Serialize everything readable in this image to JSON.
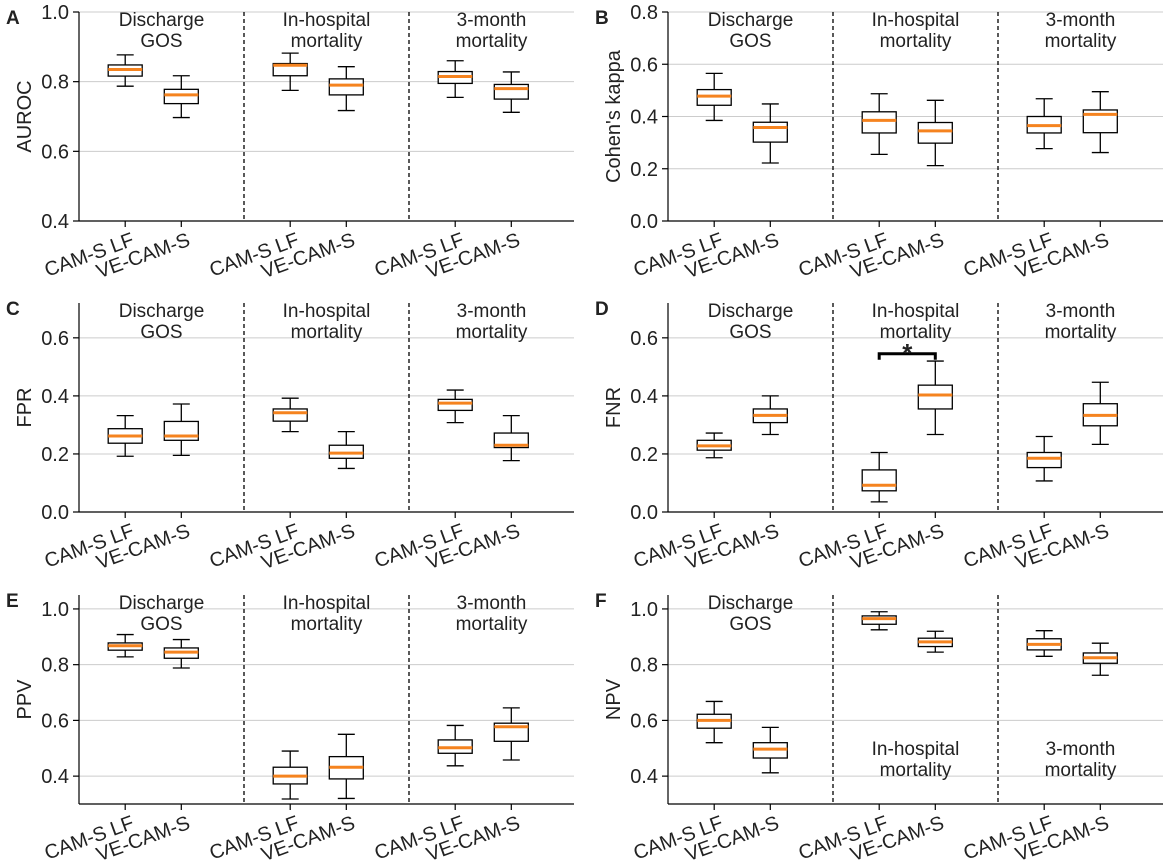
{
  "figure": {
    "colors": {
      "median": "#f5831f",
      "box": "#000000",
      "grid": "#cccccc",
      "text": "#222222"
    },
    "group_labels": [
      "CAM-S LF",
      "VE-CAM-S"
    ]
  },
  "chart_data": [
    {
      "panel_letter": "A",
      "type": "boxplot",
      "ylabel": "AUROC",
      "ylim": [
        0.4,
        1.0
      ],
      "yticks": [
        "0.4",
        "0.6",
        "0.8",
        "1.0"
      ],
      "grid": "horizontal",
      "sections": [
        {
          "title": [
            "Discharge",
            "GOS"
          ],
          "title_placement": "top",
          "boxes": [
            {
              "label": "CAM-S LF",
              "min": 0.787,
              "q1": 0.816,
              "median": 0.835,
              "q3": 0.848,
              "max": 0.877
            },
            {
              "label": "VE-CAM-S",
              "min": 0.697,
              "q1": 0.737,
              "median": 0.762,
              "q3": 0.778,
              "max": 0.817
            }
          ]
        },
        {
          "title": [
            "In-hospital",
            "mortality"
          ],
          "title_placement": "top",
          "boxes": [
            {
              "label": "CAM-S LF",
              "min": 0.775,
              "q1": 0.817,
              "median": 0.847,
              "q3": 0.852,
              "max": 0.882
            },
            {
              "label": "VE-CAM-S",
              "min": 0.717,
              "q1": 0.762,
              "median": 0.79,
              "q3": 0.808,
              "max": 0.843
            }
          ]
        },
        {
          "title": [
            "3-month",
            "mortality"
          ],
          "title_placement": "top",
          "boxes": [
            {
              "label": "CAM-S LF",
              "min": 0.755,
              "q1": 0.795,
              "median": 0.815,
              "q3": 0.829,
              "max": 0.86
            },
            {
              "label": "VE-CAM-S",
              "min": 0.712,
              "q1": 0.75,
              "median": 0.78,
              "q3": 0.792,
              "max": 0.828
            }
          ]
        }
      ]
    },
    {
      "panel_letter": "B",
      "type": "boxplot",
      "ylabel": "Cohen's kappa",
      "ylim": [
        0.0,
        0.8
      ],
      "yticks": [
        "0.0",
        "0.2",
        "0.4",
        "0.6",
        "0.8"
      ],
      "grid": "horizontal",
      "sections": [
        {
          "title": [
            "Discharge",
            "GOS"
          ],
          "title_placement": "top",
          "boxes": [
            {
              "label": "CAM-S LF",
              "min": 0.385,
              "q1": 0.443,
              "median": 0.478,
              "q3": 0.503,
              "max": 0.565
            },
            {
              "label": "VE-CAM-S",
              "min": 0.222,
              "q1": 0.302,
              "median": 0.358,
              "q3": 0.378,
              "max": 0.448
            }
          ]
        },
        {
          "title": [
            "In-hospital",
            "mortality"
          ],
          "title_placement": "top",
          "boxes": [
            {
              "label": "CAM-S LF",
              "min": 0.255,
              "q1": 0.337,
              "median": 0.385,
              "q3": 0.418,
              "max": 0.487
            },
            {
              "label": "VE-CAM-S",
              "min": 0.212,
              "q1": 0.298,
              "median": 0.345,
              "q3": 0.377,
              "max": 0.462
            }
          ]
        },
        {
          "title": [
            "3-month",
            "mortality"
          ],
          "title_placement": "top",
          "boxes": [
            {
              "label": "CAM-S LF",
              "min": 0.277,
              "q1": 0.337,
              "median": 0.365,
              "q3": 0.4,
              "max": 0.468
            },
            {
              "label": "VE-CAM-S",
              "min": 0.262,
              "q1": 0.338,
              "median": 0.408,
              "q3": 0.425,
              "max": 0.495
            }
          ]
        }
      ]
    },
    {
      "panel_letter": "C",
      "type": "boxplot",
      "ylabel": "FPR",
      "ylim": [
        0.0,
        0.72
      ],
      "yticks": [
        "0.0",
        "0.2",
        "0.4",
        "0.6"
      ],
      "grid": "horizontal",
      "sections": [
        {
          "title": [
            "Discharge",
            "GOS"
          ],
          "title_placement": "top",
          "boxes": [
            {
              "label": "CAM-S LF",
              "min": 0.192,
              "q1": 0.237,
              "median": 0.262,
              "q3": 0.287,
              "max": 0.332
            },
            {
              "label": "VE-CAM-S",
              "min": 0.195,
              "q1": 0.247,
              "median": 0.262,
              "q3": 0.312,
              "max": 0.372
            }
          ]
        },
        {
          "title": [
            "In-hospital",
            "mortality"
          ],
          "title_placement": "top",
          "boxes": [
            {
              "label": "CAM-S LF",
              "min": 0.277,
              "q1": 0.313,
              "median": 0.342,
              "q3": 0.355,
              "max": 0.392
            },
            {
              "label": "VE-CAM-S",
              "min": 0.15,
              "q1": 0.185,
              "median": 0.203,
              "q3": 0.23,
              "max": 0.277
            }
          ]
        },
        {
          "title": [
            "3-month",
            "mortality"
          ],
          "title_placement": "top",
          "boxes": [
            {
              "label": "CAM-S LF",
              "min": 0.308,
              "q1": 0.35,
              "median": 0.375,
              "q3": 0.388,
              "max": 0.42
            },
            {
              "label": "VE-CAM-S",
              "min": 0.177,
              "q1": 0.222,
              "median": 0.23,
              "q3": 0.272,
              "max": 0.332
            }
          ]
        }
      ]
    },
    {
      "panel_letter": "D",
      "type": "boxplot",
      "ylabel": "FNR",
      "ylim": [
        0.0,
        0.72
      ],
      "yticks": [
        "0.0",
        "0.2",
        "0.4",
        "0.6"
      ],
      "grid": "horizontal",
      "significance": {
        "section": 1,
        "marker": "*",
        "y": 0.545
      },
      "sections": [
        {
          "title": [
            "Discharge",
            "GOS"
          ],
          "title_placement": "top",
          "boxes": [
            {
              "label": "CAM-S LF",
              "min": 0.187,
              "q1": 0.213,
              "median": 0.228,
              "q3": 0.247,
              "max": 0.272
            },
            {
              "label": "VE-CAM-S",
              "min": 0.267,
              "q1": 0.308,
              "median": 0.333,
              "q3": 0.355,
              "max": 0.4
            }
          ]
        },
        {
          "title": [
            "In-hospital",
            "mortality"
          ],
          "title_placement": "top",
          "boxes": [
            {
              "label": "CAM-S LF",
              "min": 0.035,
              "q1": 0.073,
              "median": 0.092,
              "q3": 0.145,
              "max": 0.205
            },
            {
              "label": "VE-CAM-S",
              "min": 0.267,
              "q1": 0.355,
              "median": 0.403,
              "q3": 0.437,
              "max": 0.52
            }
          ]
        },
        {
          "title": [
            "3-month",
            "mortality"
          ],
          "title_placement": "top",
          "boxes": [
            {
              "label": "CAM-S LF",
              "min": 0.107,
              "q1": 0.153,
              "median": 0.185,
              "q3": 0.205,
              "max": 0.26
            },
            {
              "label": "VE-CAM-S",
              "min": 0.233,
              "q1": 0.297,
              "median": 0.333,
              "q3": 0.373,
              "max": 0.447
            }
          ]
        }
      ]
    },
    {
      "panel_letter": "E",
      "type": "boxplot",
      "ylabel": "PPV",
      "ylim": [
        0.3,
        1.05
      ],
      "yticks": [
        "0.4",
        "0.6",
        "0.8",
        "1.0"
      ],
      "grid": "horizontal",
      "sections": [
        {
          "title": [
            "Discharge",
            "GOS"
          ],
          "title_placement": "top",
          "boxes": [
            {
              "label": "CAM-S LF",
              "min": 0.828,
              "q1": 0.852,
              "median": 0.868,
              "q3": 0.878,
              "max": 0.908
            },
            {
              "label": "VE-CAM-S",
              "min": 0.788,
              "q1": 0.823,
              "median": 0.845,
              "q3": 0.86,
              "max": 0.89
            }
          ]
        },
        {
          "title": [
            "In-hospital",
            "mortality"
          ],
          "title_placement": "top",
          "boxes": [
            {
              "label": "CAM-S LF",
              "min": 0.318,
              "q1": 0.372,
              "median": 0.4,
              "q3": 0.432,
              "max": 0.49
            },
            {
              "label": "VE-CAM-S",
              "min": 0.32,
              "q1": 0.39,
              "median": 0.432,
              "q3": 0.47,
              "max": 0.55
            }
          ]
        },
        {
          "title": [
            "3-month",
            "mortality"
          ],
          "title_placement": "top",
          "boxes": [
            {
              "label": "CAM-S LF",
              "min": 0.437,
              "q1": 0.482,
              "median": 0.502,
              "q3": 0.53,
              "max": 0.582
            },
            {
              "label": "VE-CAM-S",
              "min": 0.458,
              "q1": 0.525,
              "median": 0.577,
              "q3": 0.59,
              "max": 0.645
            }
          ]
        }
      ]
    },
    {
      "panel_letter": "F",
      "type": "boxplot",
      "ylabel": "NPV",
      "ylim": [
        0.3,
        1.05
      ],
      "yticks": [
        "0.4",
        "0.6",
        "0.8",
        "1.0"
      ],
      "grid": "horizontal",
      "sections": [
        {
          "title": [
            "Discharge",
            "GOS"
          ],
          "title_placement": "top",
          "boxes": [
            {
              "label": "CAM-S LF",
              "min": 0.52,
              "q1": 0.572,
              "median": 0.6,
              "q3": 0.622,
              "max": 0.668
            },
            {
              "label": "VE-CAM-S",
              "min": 0.412,
              "q1": 0.465,
              "median": 0.497,
              "q3": 0.52,
              "max": 0.575
            }
          ]
        },
        {
          "title": [
            "In-hospital",
            "mortality"
          ],
          "title_placement": "bottom",
          "boxes": [
            {
              "label": "CAM-S LF",
              "min": 0.925,
              "q1": 0.945,
              "median": 0.965,
              "q3": 0.975,
              "max": 0.99
            },
            {
              "label": "VE-CAM-S",
              "min": 0.845,
              "q1": 0.865,
              "median": 0.882,
              "q3": 0.895,
              "max": 0.92
            }
          ]
        },
        {
          "title": [
            "3-month",
            "mortality"
          ],
          "title_placement": "bottom",
          "boxes": [
            {
              "label": "CAM-S LF",
              "min": 0.83,
              "q1": 0.853,
              "median": 0.873,
              "q3": 0.893,
              "max": 0.922
            },
            {
              "label": "VE-CAM-S",
              "min": 0.762,
              "q1": 0.805,
              "median": 0.825,
              "q3": 0.842,
              "max": 0.877
            }
          ]
        }
      ]
    }
  ]
}
